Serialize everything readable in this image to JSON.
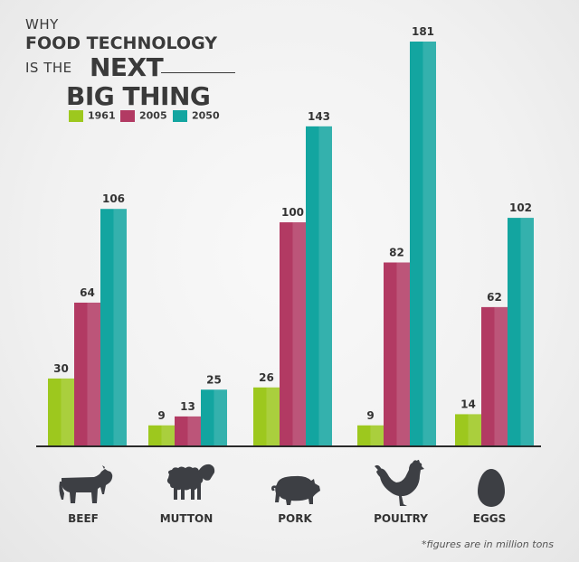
{
  "title": {
    "line1": "WHY",
    "line2": "FOOD TECHNOLOGY",
    "line3_small": "IS THE",
    "line3_big": "NEXT",
    "line4": "BIG THING"
  },
  "footnote": "*figures are in million tons",
  "colors": {
    "1961": "#9dc81e",
    "2005": "#b23a63",
    "2050": "#13a5a0",
    "axis": "#2a2a2a",
    "icon": "#3d3f44",
    "label": "#333333"
  },
  "chart_data": {
    "type": "bar",
    "title": "WHY FOOD TECHNOLOGY IS THE NEXT BIG THING",
    "xlabel": "",
    "ylabel": "",
    "categories": [
      "BEEF",
      "MUTTON",
      "PORK",
      "POULTRY",
      "EGGS"
    ],
    "category_icons": [
      "cow-icon",
      "sheep-icon",
      "pig-icon",
      "chicken-icon",
      "egg-icon"
    ],
    "series": [
      {
        "name": "1961",
        "color": "#9dc81e",
        "values": [
          30,
          9,
          26,
          9,
          14
        ]
      },
      {
        "name": "2005",
        "color": "#b23a63",
        "values": [
          64,
          13,
          100,
          82,
          62
        ]
      },
      {
        "name": "2050",
        "color": "#13a5a0",
        "values": [
          106,
          25,
          143,
          181,
          102
        ]
      }
    ],
    "ylim": [
      0,
      181
    ],
    "grid": false,
    "legend": "top-left",
    "data_labels": true
  }
}
